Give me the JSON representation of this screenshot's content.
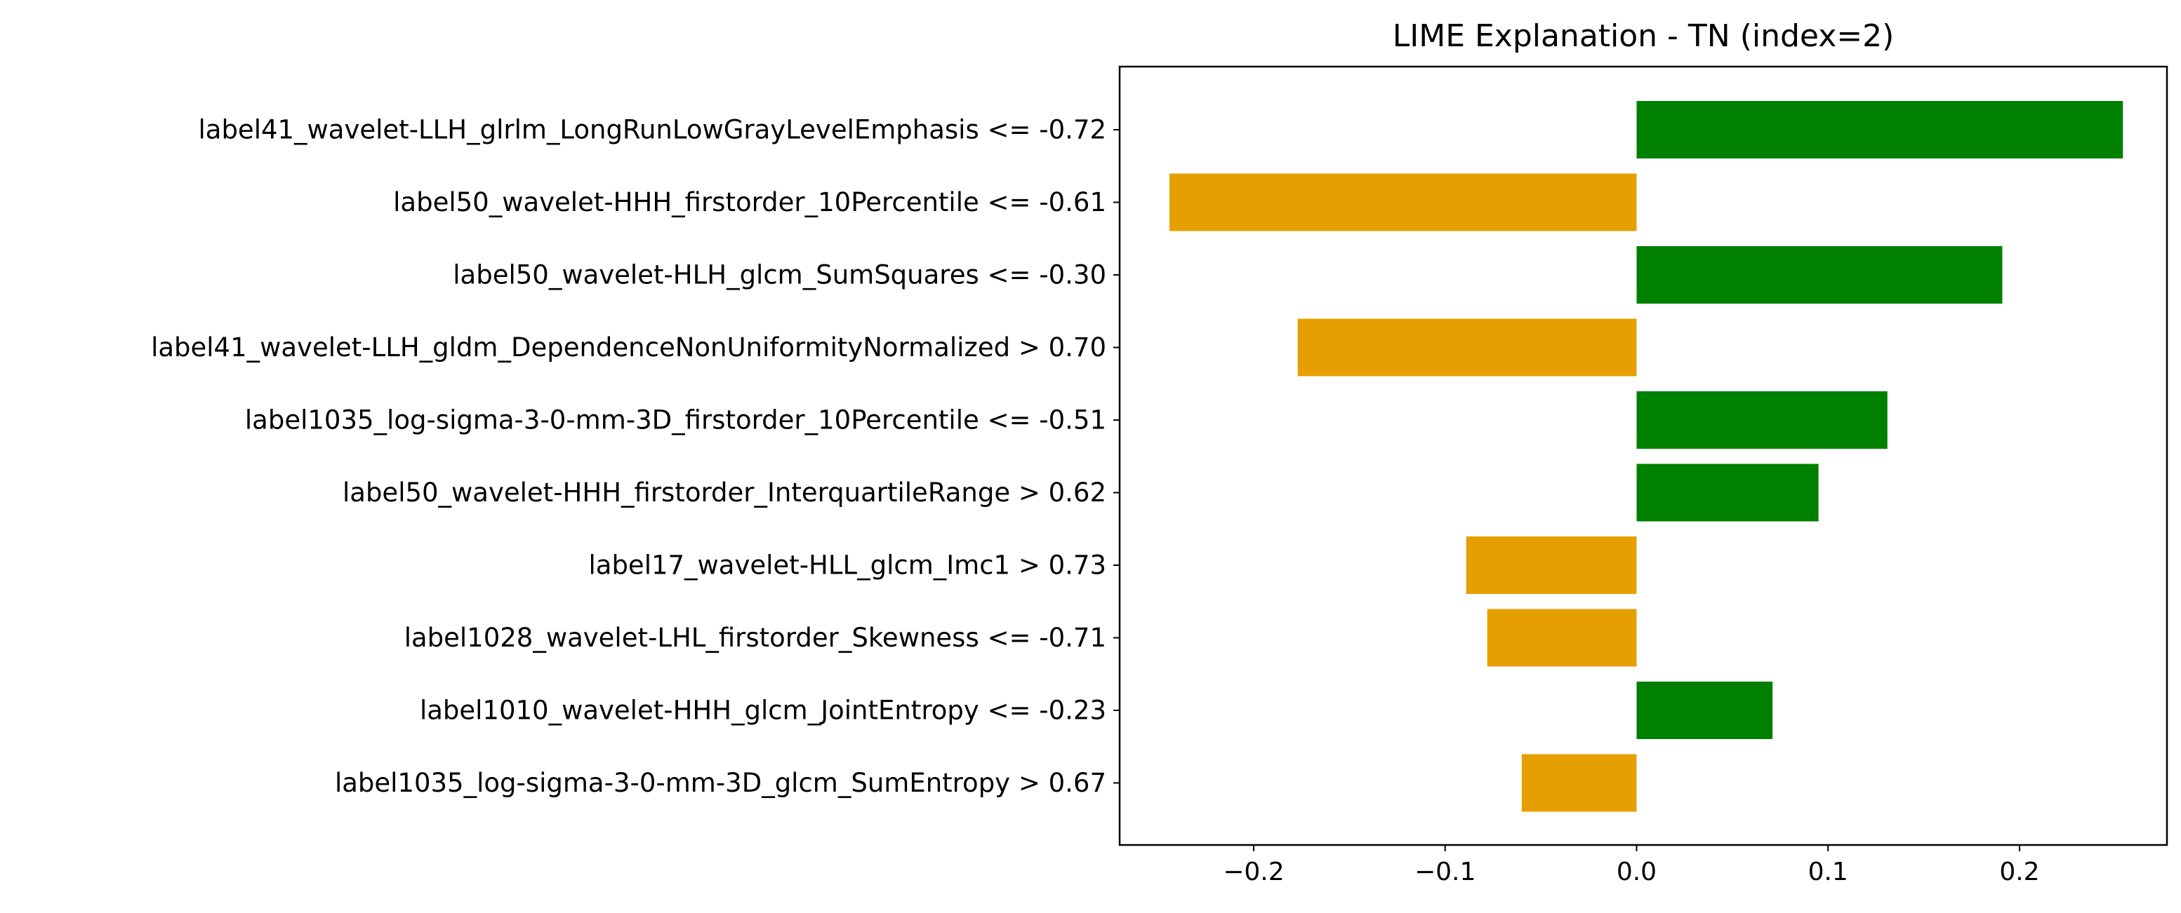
{
  "chart_data": {
    "type": "bar",
    "orientation": "horizontal",
    "title": "LIME Explanation - TN (index=2)",
    "xlabel": "",
    "ylabel": "",
    "xlim": [
      -0.27,
      0.277
    ],
    "grid": false,
    "legend": false,
    "colors": {
      "positive": "#008000",
      "negative": "#e69f00",
      "axis": "#000000"
    },
    "x_ticks": [
      {
        "value": -0.2,
        "label": "−0.2"
      },
      {
        "value": -0.1,
        "label": "−0.1"
      },
      {
        "value": 0.0,
        "label": "0.0"
      },
      {
        "value": 0.1,
        "label": "0.1"
      },
      {
        "value": 0.2,
        "label": "0.2"
      }
    ],
    "categories": [
      "label41_wavelet-LLH_glrlm_LongRunLowGrayLevelEmphasis <= -0.72",
      "label50_wavelet-HHH_firstorder_10Percentile <= -0.61",
      "label50_wavelet-HLH_glcm_SumSquares <= -0.30",
      "label41_wavelet-LLH_gldm_DependenceNonUniformityNormalized > 0.70",
      "label1035_log-sigma-3-0-mm-3D_firstorder_10Percentile <= -0.51",
      "label50_wavelet-HHH_firstorder_InterquartileRange > 0.62",
      "label17_wavelet-HLL_glcm_Imc1 > 0.73",
      "label1028_wavelet-LHL_firstorder_Skewness <= -0.71",
      "label1010_wavelet-HHH_glcm_JointEntropy <= -0.23",
      "label1035_log-sigma-3-0-mm-3D_glcm_SumEntropy > 0.67"
    ],
    "values": [
      0.254,
      -0.244,
      0.191,
      -0.177,
      0.131,
      0.095,
      -0.089,
      -0.078,
      0.071,
      -0.06
    ]
  }
}
